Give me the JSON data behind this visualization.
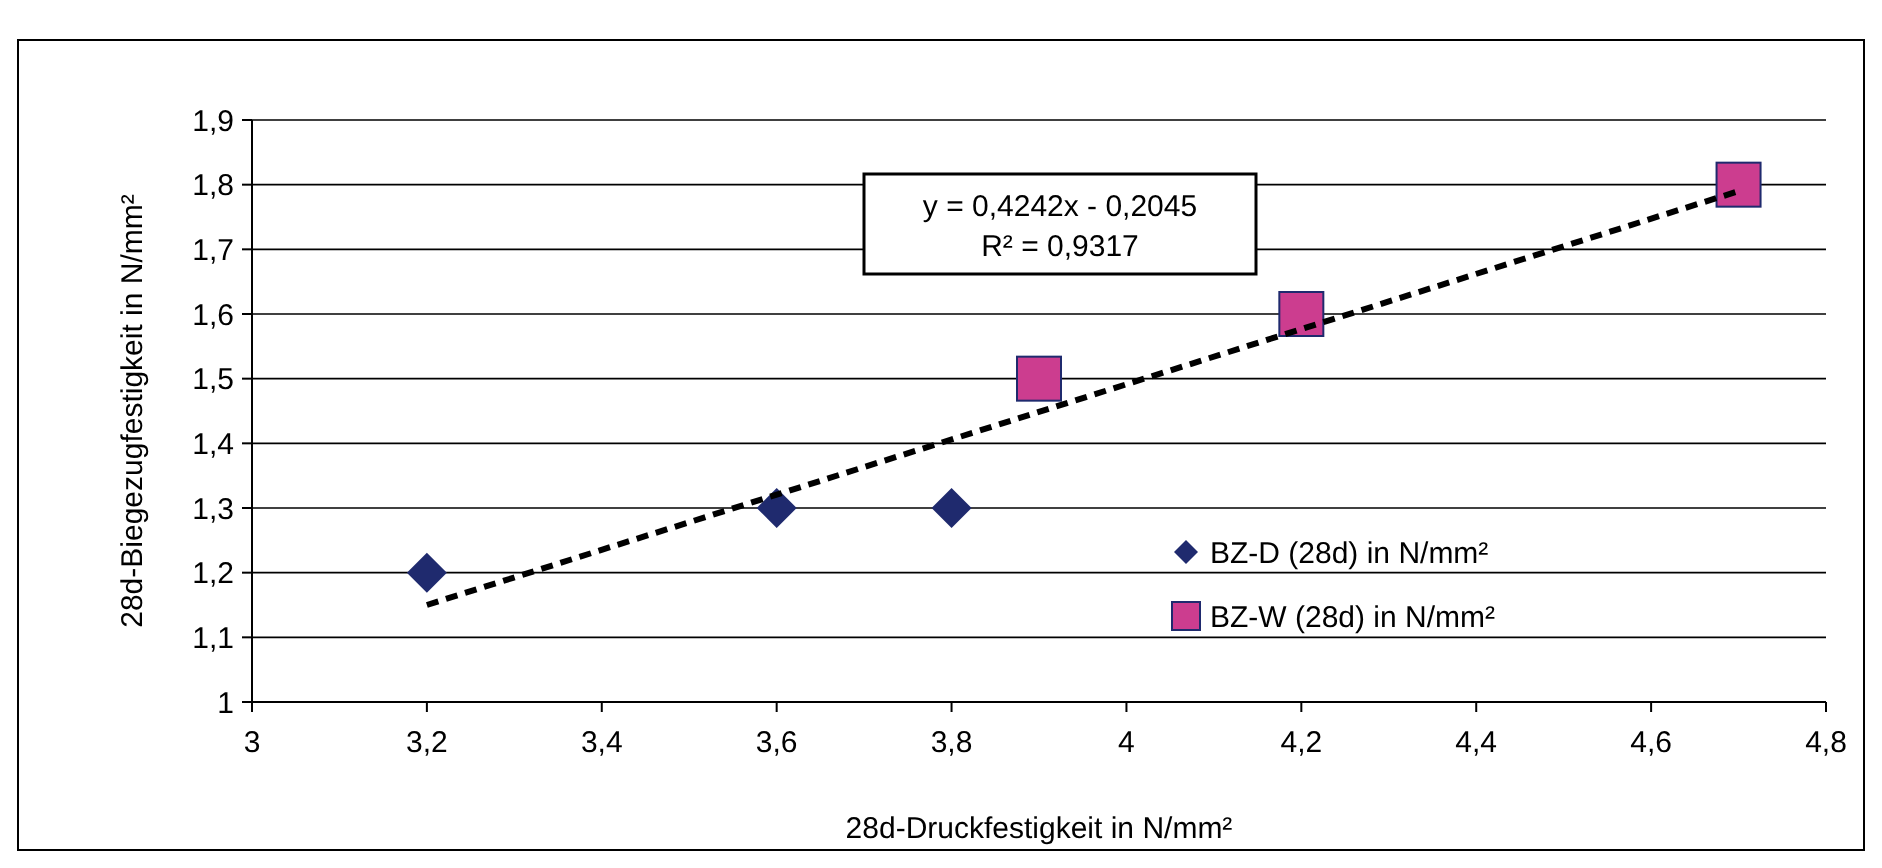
{
  "chart_data": {
    "type": "scatter",
    "xlabel": "28d-Druckfestigkeit in N/mm²",
    "ylabel": "28d-Biegezugfestigkeit in N/mm²",
    "xlim": [
      3,
      4.8
    ],
    "xticks": [
      3,
      {
        "value": 3.2,
        "label": "3,2"
      },
      {
        "value": 3.4,
        "label": "3,4"
      },
      {
        "value": 3.6,
        "label": "3,6"
      },
      {
        "value": 3.8,
        "label": "3,8"
      },
      4,
      {
        "value": 4.2,
        "label": "4,2"
      },
      {
        "value": 4.4,
        "label": "4,4"
      },
      {
        "value": 4.6,
        "label": "4,6"
      },
      {
        "value": 4.8,
        "label": "4,8"
      }
    ],
    "ylim": [
      1,
      1.9
    ],
    "yticks": [
      1,
      {
        "value": 1.1,
        "label": "1,1"
      },
      {
        "value": 1.2,
        "label": "1,2"
      },
      {
        "value": 1.3,
        "label": "1,3"
      },
      {
        "value": 1.4,
        "label": "1,4"
      },
      {
        "value": 1.5,
        "label": "1,5"
      },
      {
        "value": 1.6,
        "label": "1,6"
      },
      {
        "value": 1.7,
        "label": "1,7"
      },
      {
        "value": 1.8,
        "label": "1,8"
      },
      {
        "value": 1.9,
        "label": "1,9"
      }
    ],
    "grid": "y",
    "legend": "bottom right",
    "series": [
      {
        "name": "BZ-D (28d) in N/mm²",
        "color": "#1f2a6e",
        "marker": "diamond",
        "x": [
          3.2,
          3.6,
          3.8
        ],
        "values": [
          1.2,
          1.3,
          1.3
        ]
      },
      {
        "name": "BZ-W (28d) in N/mm²",
        "color": "#cc3d8f",
        "marker": "square",
        "x": [
          3.9,
          4.2,
          4.7
        ],
        "values": [
          1.5,
          1.6,
          1.8
        ]
      },
      {
        "type": "line",
        "color": "#000000",
        "line_style": "dashed",
        "x": [
          3.2,
          4.7
        ],
        "values": [
          1.15,
          1.79
        ]
      }
    ],
    "annotations": [
      "y = 0,4242x - 0,2045",
      "R² = 0,9317"
    ]
  }
}
